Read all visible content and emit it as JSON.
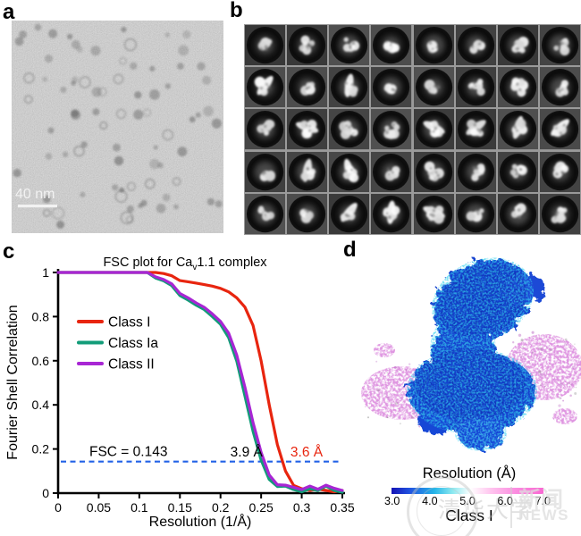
{
  "figure": {
    "panels": {
      "a": {
        "label": "a",
        "scale_bar_label": "40 nm",
        "type": "cryo-EM micrograph"
      },
      "b": {
        "label": "b",
        "type": "2D class averages",
        "grid_rows": 5,
        "grid_cols": 8
      },
      "c": {
        "label": "c",
        "type": "FSC plot"
      },
      "d": {
        "label": "d",
        "type": "3D reconstruction colored by local resolution",
        "colorbar_title": "Resolution (Å)",
        "colorbar_ticks": [
          "3.0",
          "4.0",
          "5.0",
          "6.0",
          "7.0"
        ],
        "class_label": "Class I",
        "colorbar_gradient": [
          "#1513b6",
          "#24b4e8",
          "#ffffff",
          "#f968d2"
        ]
      }
    }
  },
  "chart_data": {
    "type": "line",
    "title": "FSC plot for Cav1.1 complex",
    "title_parts": {
      "pre": "FSC plot for Ca",
      "sub": "v",
      "post": "1.1 complex"
    },
    "xlabel": "Resolution (1/Å)",
    "ylabel": "Fourier Shell Correlation",
    "xlim": [
      0,
      0.35
    ],
    "ylim": [
      0,
      1
    ],
    "grid": false,
    "legend_position": "upper-left-inside",
    "xticks": [
      0,
      0.05,
      0.1,
      0.15,
      0.2,
      0.25,
      0.3,
      0.35
    ],
    "xtick_labels": [
      "0",
      "0.05",
      "0.1",
      "0.15",
      "0.2",
      "0.25",
      "0.3",
      "0.35"
    ],
    "yticks": [
      0,
      0.2,
      0.4,
      0.6,
      0.8,
      1
    ],
    "ytick_labels": [
      "0",
      "0.2",
      "0.4",
      "0.6",
      "0.8",
      "1"
    ],
    "x": [
      0,
      0.01,
      0.02,
      0.03,
      0.04,
      0.05,
      0.06,
      0.07,
      0.08,
      0.09,
      0.1,
      0.11,
      0.12,
      0.13,
      0.14,
      0.15,
      0.16,
      0.17,
      0.18,
      0.19,
      0.2,
      0.21,
      0.22,
      0.23,
      0.24,
      0.25,
      0.26,
      0.27,
      0.28,
      0.29,
      0.3,
      0.31,
      0.32,
      0.33,
      0.34,
      0.35
    ],
    "series": [
      {
        "name": "Class I",
        "color": "#e8250f",
        "values": [
          1,
          1,
          1,
          1,
          1,
          1,
          1,
          1,
          1,
          1,
          1,
          1,
          1,
          0.995,
          0.985,
          0.963,
          0.958,
          0.952,
          0.945,
          0.938,
          0.928,
          0.912,
          0.885,
          0.843,
          0.76,
          0.6,
          0.4,
          0.22,
          0.1,
          0.035,
          0.02,
          0.012,
          0.018,
          0.012,
          0.006,
          0.012
        ]
      },
      {
        "name": "Class Ia",
        "color": "#129c78",
        "values": [
          1,
          1,
          1,
          1,
          1,
          1,
          1,
          1,
          1,
          1,
          1,
          1,
          0.975,
          0.962,
          0.94,
          0.895,
          0.875,
          0.852,
          0.832,
          0.8,
          0.765,
          0.705,
          0.598,
          0.44,
          0.28,
          0.15,
          0.062,
          0.03,
          0.032,
          0.016,
          0.006,
          0.02,
          0.012,
          0.032,
          0.012,
          0.004
        ]
      },
      {
        "name": "Class II",
        "color": "#a826d4",
        "values": [
          1,
          1,
          1,
          1,
          1,
          1,
          1,
          1,
          1,
          1,
          1,
          1,
          0.98,
          0.968,
          0.948,
          0.905,
          0.885,
          0.862,
          0.842,
          0.812,
          0.778,
          0.725,
          0.625,
          0.48,
          0.32,
          0.185,
          0.082,
          0.038,
          0.036,
          0.026,
          0.016,
          0.032,
          0.018,
          0.036,
          0.022,
          0.012
        ]
      }
    ],
    "threshold": {
      "label": "FSC = 0.143",
      "y": 0.143,
      "color": "#2262e6"
    },
    "annotations": [
      {
        "text": "3.9 Å",
        "x": 0.232,
        "y": 0.165,
        "color": "#000000"
      },
      {
        "text": "3.6 Å",
        "x": 0.306,
        "y": 0.165,
        "color": "#e8250f"
      }
    ],
    "resolution_values": {
      "Class I": "3.6 Å",
      "Class Ia / Class II": "3.9 Å"
    }
  },
  "watermark": {
    "university": "清华大学",
    "news_cn": "新闻",
    "news_en": "NEWS"
  },
  "colors": {
    "class1_red": "#e8250f",
    "class1a_teal": "#129c78",
    "class2_purple": "#a826d4",
    "threshold_blue": "#2262e6",
    "map_blue": "#1443cf",
    "map_cyan": "#35d2ee",
    "map_pink": "#da84dc"
  }
}
